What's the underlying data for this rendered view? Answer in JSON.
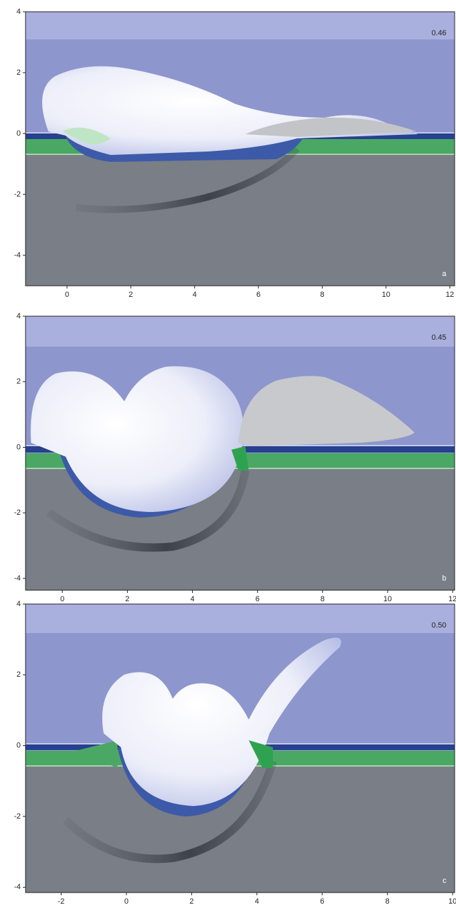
{
  "chart_data": [
    {
      "type": "field",
      "time_label": "0.46",
      "panel_label": "a",
      "xlim": [
        -1.3,
        12.15
      ],
      "ylim": [
        -5,
        4
      ],
      "xticks": [
        0,
        2,
        4,
        6,
        8,
        10,
        12
      ],
      "yticks": [
        -4,
        -2,
        0,
        2,
        4
      ]
    },
    {
      "type": "field",
      "time_label": "0.45",
      "panel_label": "b",
      "xlim": [
        -1.13,
        12.06
      ],
      "ylim": [
        -4.36,
        4
      ],
      "xticks": [
        0,
        2,
        4,
        6,
        8,
        10,
        12
      ],
      "yticks": [
        -4,
        -2,
        0,
        2,
        4
      ]
    },
    {
      "type": "field",
      "time_label": "0.50",
      "panel_label": "c",
      "xlim": [
        -3.09,
        10.06
      ],
      "ylim": [
        -4.15,
        4
      ],
      "xticks": [
        -2,
        0,
        2,
        4,
        6,
        8,
        10
      ],
      "yticks": [
        -4,
        -2,
        0,
        2,
        4
      ]
    }
  ]
}
